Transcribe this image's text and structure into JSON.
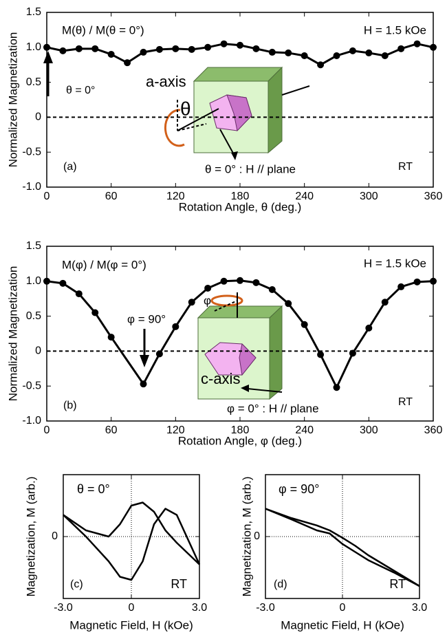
{
  "chart_data": [
    {
      "type": "line",
      "ylabel": "Normalized Magnetization",
      "xlabel": "Rotation Angle, θ  (deg.)",
      "x": [
        0,
        15,
        30,
        45,
        60,
        75,
        90,
        105,
        120,
        135,
        150,
        165,
        180,
        195,
        210,
        225,
        240,
        255,
        270,
        285,
        300,
        315,
        330,
        345,
        360
      ],
      "series": [
        {
          "color": "#000000",
          "values": [
            1.0,
            0.95,
            0.98,
            0.98,
            0.9,
            0.78,
            0.93,
            0.97,
            0.98,
            0.97,
            1.0,
            1.05,
            1.03,
            0.98,
            0.93,
            0.92,
            0.88,
            0.75,
            0.88,
            0.95,
            0.92,
            0.88,
            0.98,
            1.05,
            1.0
          ]
        }
      ],
      "markers": true,
      "zero_line": true,
      "xlim": [
        0,
        360
      ],
      "xticks": [
        0,
        60,
        120,
        180,
        240,
        300,
        360
      ],
      "ylim": [
        -1.0,
        1.5
      ],
      "yticks": [
        {
          "value": -1.0,
          "label": "-1.0"
        },
        {
          "value": -0.5,
          "label": "-0.5"
        },
        0,
        {
          "value": 0.5,
          "label": "0.5"
        },
        {
          "value": 1.0,
          "label": "1.0"
        },
        {
          "value": 1.5,
          "label": "1.5"
        }
      ],
      "annotations": [
        "M(θ) / M(θ = 0°)",
        "H = 1.5 kOe",
        "θ = 0°",
        "a-axis",
        "θ",
        "θ = 0° : H // plane",
        "(a)",
        "RT"
      ]
    },
    {
      "type": "line",
      "ylabel": "Normalized Magnetization",
      "xlabel": "Rotation Angle, φ  (deg.)",
      "x": [
        0,
        15,
        30,
        45,
        60,
        90,
        105,
        120,
        135,
        150,
        165,
        180,
        195,
        210,
        225,
        240,
        255,
        270,
        285,
        300,
        315,
        330,
        345,
        360
      ],
      "series": [
        {
          "color": "#000000",
          "values": [
            1.0,
            0.97,
            0.82,
            0.55,
            0.2,
            -0.47,
            -0.04,
            0.35,
            0.7,
            0.9,
            1.0,
            1.01,
            0.98,
            0.88,
            0.68,
            0.38,
            -0.05,
            -0.52,
            -0.03,
            0.33,
            0.7,
            0.92,
            0.99,
            1.0
          ]
        }
      ],
      "markers": true,
      "zero_line": true,
      "xlim": [
        0,
        360
      ],
      "xticks": [
        0,
        60,
        120,
        180,
        240,
        300,
        360
      ],
      "ylim": [
        -1.0,
        1.5
      ],
      "yticks": [
        {
          "value": -1.0,
          "label": "-1.0"
        },
        {
          "value": -0.5,
          "label": "-0.5"
        },
        0,
        {
          "value": 0.5,
          "label": "0.5"
        },
        {
          "value": 1.0,
          "label": "1.0"
        },
        {
          "value": 1.5,
          "label": "1.5"
        }
      ],
      "annotations": [
        "M(φ) / M(φ = 0°)",
        "H = 1.5 kOe",
        "φ = 90°",
        "φ",
        "c-axis",
        "φ = 0° : H // plane",
        "(b)",
        "RT"
      ]
    },
    {
      "type": "line",
      "ylabel": "Magnetization, M (arb.)",
      "xlabel": "Magnetic Field, H (kOe)",
      "series": [
        {
          "color": "#000000",
          "x": [
            -3,
            -2,
            -1,
            -0.5,
            0,
            0.5,
            1,
            1.5,
            2,
            3
          ],
          "values": [
            0.35,
            0.0,
            -0.4,
            -0.65,
            -0.7,
            -0.4,
            0.2,
            0.45,
            0.35,
            -0.45
          ]
        },
        {
          "color": "#000000",
          "x": [
            3,
            2,
            1.5,
            1,
            0.5,
            0,
            -0.5,
            -1,
            -2,
            -3
          ],
          "values": [
            -0.45,
            -0.1,
            0.1,
            0.4,
            0.55,
            0.5,
            0.2,
            0.0,
            0.1,
            0.35
          ]
        }
      ],
      "markers": false,
      "zero_cross": true,
      "xlim": [
        -3.0,
        3.0
      ],
      "xticks": [
        {
          "value": -3.0,
          "label": "-3.0"
        },
        0,
        {
          "value": 3.0,
          "label": "3.0"
        }
      ],
      "ylim": [
        -1.0,
        1.0
      ],
      "yticks": [
        0
      ],
      "annotations": [
        "θ = 0°",
        "(c)",
        "RT"
      ]
    },
    {
      "type": "line",
      "ylabel": "Magnetization, M (arb.)",
      "xlabel": "Magnetic Field, H (kOe)",
      "series": [
        {
          "color": "#000000",
          "x": [
            -3,
            -2,
            -1,
            -0.5,
            0,
            0.5,
            1,
            2,
            3
          ],
          "values": [
            0.45,
            0.28,
            0.1,
            0.05,
            -0.12,
            -0.25,
            -0.38,
            -0.58,
            -0.8
          ]
        },
        {
          "color": "#000000",
          "x": [
            3,
            2,
            1,
            0.5,
            0,
            -0.5,
            -1,
            -2,
            -3
          ],
          "values": [
            -0.8,
            -0.55,
            -0.3,
            -0.15,
            -0.02,
            0.1,
            0.18,
            0.3,
            0.45
          ]
        }
      ],
      "markers": false,
      "zero_cross": true,
      "xlim": [
        -3.0,
        3.0
      ],
      "xticks": [
        {
          "value": -3.0,
          "label": "-3.0"
        },
        0,
        {
          "value": 3.0,
          "label": "3.0"
        }
      ],
      "ylim": [
        -1.0,
        1.0
      ],
      "yticks": [
        0
      ],
      "annotations": [
        "φ = 90°",
        "(d)",
        "RT"
      ]
    }
  ]
}
